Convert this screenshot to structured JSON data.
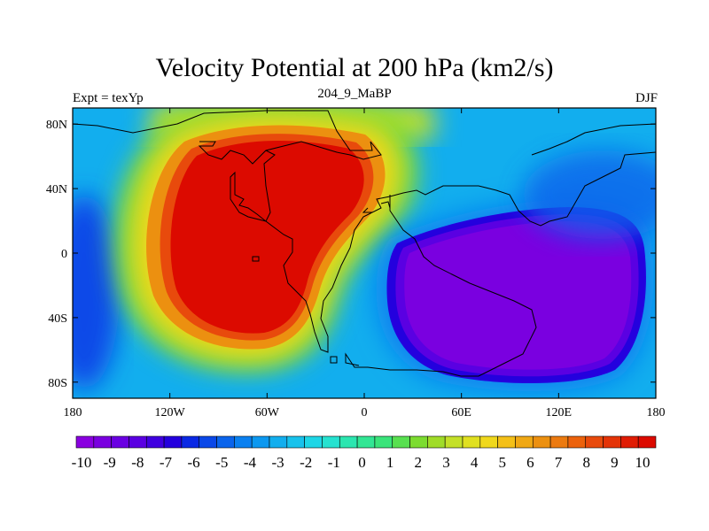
{
  "title": "Velocity Potential at 200 hPa (km2/s)",
  "left_label": "Expt = texYp",
  "center_label": "204_9_MaBP",
  "right_label": "DJF",
  "map": {
    "lon_range": [
      -180,
      180
    ],
    "lat_range": [
      -90,
      90
    ],
    "x_ticks": [
      {
        "value": -180,
        "label": "180"
      },
      {
        "value": -120,
        "label": "120W"
      },
      {
        "value": -60,
        "label": "60W"
      },
      {
        "value": 0,
        "label": "0"
      },
      {
        "value": 60,
        "label": "60E"
      },
      {
        "value": 120,
        "label": "120E"
      },
      {
        "value": 180,
        "label": "180"
      }
    ],
    "y_ticks": [
      {
        "value": 80,
        "label": "80N"
      },
      {
        "value": 40,
        "label": "40N"
      },
      {
        "value": 0,
        "label": "0"
      },
      {
        "value": -40,
        "label": "40S"
      },
      {
        "value": -80,
        "label": "80S"
      }
    ],
    "positive_center": {
      "lon": -55,
      "lat": 10,
      "value": 10
    },
    "negative_center": {
      "lon": 100,
      "lat": -25,
      "value": -10
    }
  },
  "colorbar": {
    "levels": [
      "-10",
      "-9",
      "-8",
      "-7",
      "-6",
      "-5",
      "-4",
      "-3",
      "-2",
      "-1",
      "0",
      "1",
      "2",
      "3",
      "4",
      "5",
      "6",
      "7",
      "8",
      "9",
      "10"
    ],
    "colors": [
      "#8a00e0",
      "#7a00e0",
      "#6a00e2",
      "#5a00e2",
      "#4000e0",
      "#2400de",
      "#0a28e4",
      "#0a48e8",
      "#0a64ec",
      "#0a80f0",
      "#0c98f0",
      "#12aeee",
      "#18c2ec",
      "#1ed6e6",
      "#26e2d0",
      "#2ce6b0",
      "#32e694",
      "#3ae47a",
      "#58e050",
      "#7cdc30",
      "#a0dc28",
      "#c4e028",
      "#e0e020",
      "#f0d81c",
      "#f4c018",
      "#f0a814",
      "#ec9010",
      "#ec7a10",
      "#ec620c",
      "#e84a0c",
      "#e43408",
      "#e01c04",
      "#dc0a00"
    ]
  }
}
